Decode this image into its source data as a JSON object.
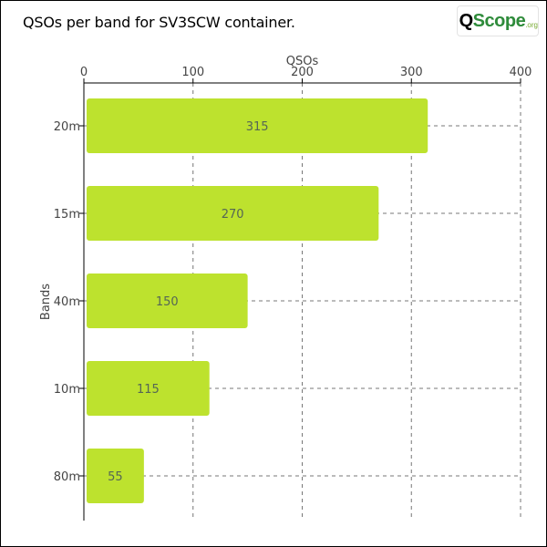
{
  "chart_data": {
    "type": "bar",
    "orientation": "horizontal",
    "title": "QSOs per band for SV3SCW container.",
    "xlabel": "QSOs",
    "ylabel": "Bands",
    "categories": [
      "20m",
      "15m",
      "40m",
      "10m",
      "80m"
    ],
    "values": [
      315,
      270,
      150,
      115,
      55
    ],
    "xlim": [
      0,
      400
    ],
    "xticks": [
      0,
      100,
      200,
      300,
      400
    ],
    "x_axis_position": "top",
    "grid": true,
    "data_labels": true,
    "bar_color": "#bde22e",
    "grid_color": "#777777"
  },
  "logo": {
    "word_q": "Q",
    "word_rest": "Scope",
    "suffix": ".org",
    "brand_green": "#2e8b3a",
    "icon": "magnifier-icon"
  }
}
